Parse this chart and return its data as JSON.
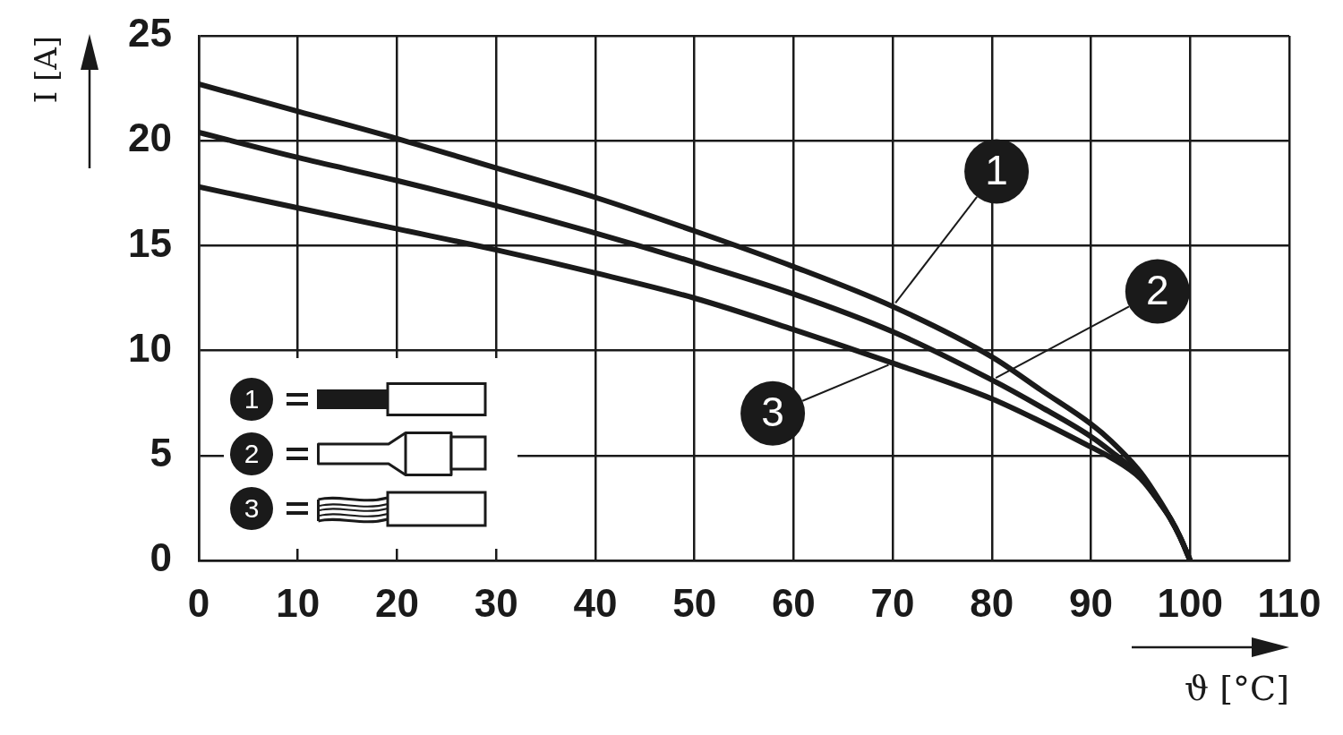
{
  "chart_data": {
    "type": "line",
    "xlabel": "ϑ [°C]",
    "ylabel": "I [A]",
    "x": [
      0,
      10,
      20,
      30,
      40,
      50,
      60,
      70,
      80,
      85,
      90,
      92,
      95,
      97,
      98,
      99,
      100
    ],
    "series": [
      {
        "name": "1",
        "color": "#1a1a1a",
        "values": [
          22.7,
          21.4,
          20.1,
          18.7,
          17.3,
          15.7,
          14.0,
          12.1,
          9.7,
          8.1,
          6.5,
          5.7,
          4.2,
          2.8,
          2.0,
          1.1,
          0
        ]
      },
      {
        "name": "2",
        "color": "#1a1a1a",
        "values": [
          20.4,
          19.2,
          18.1,
          16.9,
          15.6,
          14.2,
          12.7,
          10.9,
          8.6,
          7.3,
          5.9,
          5.2,
          4.0,
          2.7,
          2.0,
          1.1,
          0
        ]
      },
      {
        "name": "3",
        "color": "#1a1a1a",
        "values": [
          17.8,
          16.8,
          15.8,
          14.8,
          13.7,
          12.5,
          11.0,
          9.4,
          7.7,
          6.6,
          5.4,
          4.9,
          3.9,
          2.7,
          2.0,
          1.1,
          0
        ]
      }
    ],
    "xlim": [
      0,
      110
    ],
    "xticks": [
      0,
      10,
      20,
      30,
      40,
      50,
      60,
      70,
      80,
      90,
      100,
      110
    ],
    "ylim": [
      0,
      25
    ],
    "yticks": [
      0,
      5,
      10,
      15,
      20,
      25
    ],
    "grid": true,
    "legend": "bottom left",
    "marker": "none"
  }
}
